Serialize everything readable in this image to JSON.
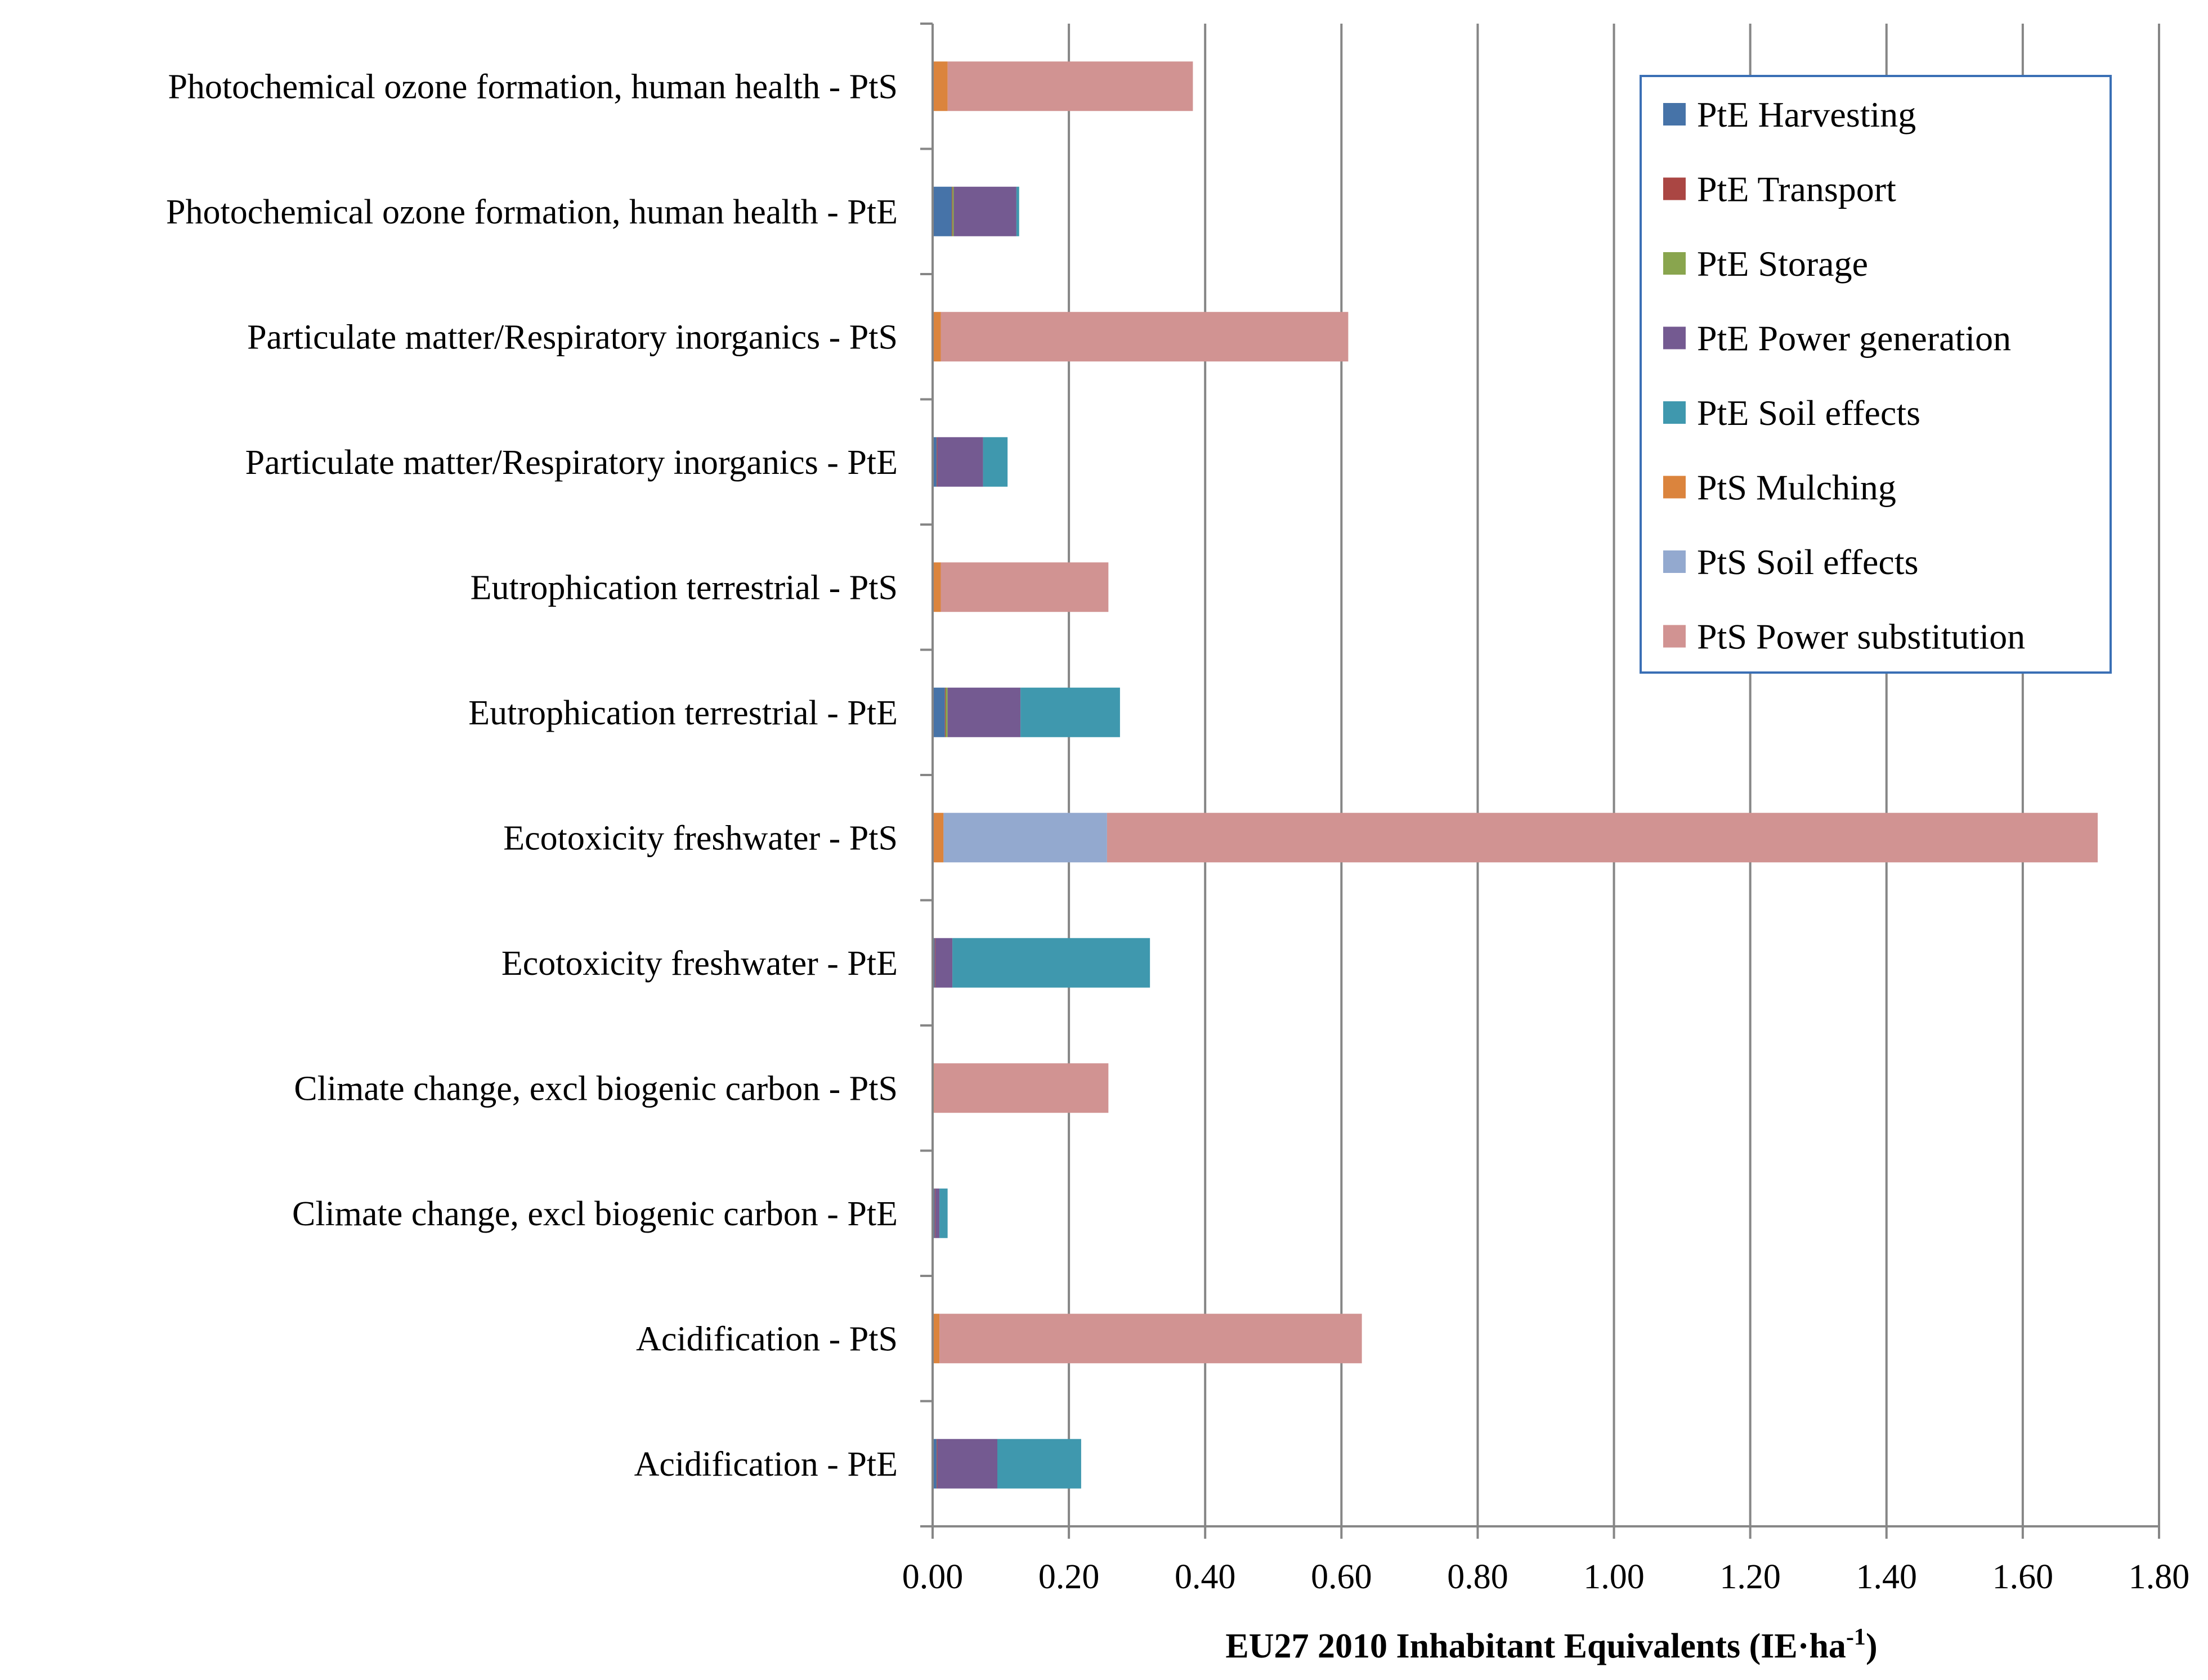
{
  "chart_data": {
    "type": "bar",
    "orientation": "horizontal",
    "stacked": true,
    "title": "",
    "xlabel": "EU27 2010 Inhabitant Equivalents (IE·ha",
    "xlabel_sup": "-1",
    "xlabel_end": ")",
    "ylabel": "",
    "xlim": [
      0,
      1.8
    ],
    "xticks": [
      "0.00",
      "0.20",
      "0.40",
      "0.60",
      "0.80",
      "1.00",
      "1.20",
      "1.40",
      "1.60",
      "1.80"
    ],
    "grid": "vertical",
    "legend_position": "top-right",
    "categories": [
      "Photochemical ozone formation, human health - PtS",
      "Photochemical ozone formation, human health - PtE",
      "Particulate matter/Respiratory inorganics - PtS",
      "Particulate matter/Respiratory inorganics - PtE",
      "Eutrophication terrestrial - PtS",
      "Eutrophication terrestrial - PtE",
      "Ecotoxicity freshwater - PtS",
      "Ecotoxicity freshwater - PtE",
      "Climate change, excl biogenic carbon - PtS",
      "Climate change, excl biogenic carbon - PtE",
      "Acidification - PtS",
      "Acidification - PtE"
    ],
    "series": [
      {
        "name": "PtE Harvesting",
        "color": "#4673A8",
        "values": [
          0,
          0.028,
          0,
          0.006,
          0,
          0.018,
          0,
          0.003,
          0,
          0.003,
          0,
          0.006
        ]
      },
      {
        "name": "PtE Transport",
        "color": "#AA4643",
        "values": [
          0,
          0.001,
          0,
          0.001,
          0,
          0.001,
          0,
          0.001,
          0,
          0.001,
          0,
          0.001
        ]
      },
      {
        "name": "PtE Storage",
        "color": "#89A54E",
        "values": [
          0,
          0.002,
          0,
          0,
          0,
          0.003,
          0,
          0,
          0,
          0,
          0,
          0
        ]
      },
      {
        "name": "PtE Power generation",
        "color": "#745A91",
        "values": [
          0,
          0.092,
          0,
          0.067,
          0,
          0.107,
          0,
          0.025,
          0,
          0.006,
          0,
          0.088
        ]
      },
      {
        "name": "PtE Soil effects",
        "color": "#3F98AE",
        "values": [
          0,
          0.004,
          0,
          0.036,
          0,
          0.146,
          0,
          0.29,
          0,
          0.012,
          0,
          0.123
        ]
      },
      {
        "name": "PtS Mulching",
        "color": "#DB843D",
        "values": [
          0.022,
          0,
          0.012,
          0,
          0.012,
          0,
          0.016,
          0,
          0.002,
          0,
          0.01,
          0
        ]
      },
      {
        "name": "PtS Soil effects",
        "color": "#93A9CF",
        "values": [
          0,
          0,
          0,
          0,
          0,
          0,
          0.24,
          0,
          0,
          0,
          0,
          0
        ]
      },
      {
        "name": "PtS Power substitution",
        "color": "#D19392",
        "values": [
          0.36,
          0,
          0.598,
          0,
          0.246,
          0,
          1.454,
          0,
          0.256,
          0,
          0.62,
          0
        ]
      }
    ]
  }
}
